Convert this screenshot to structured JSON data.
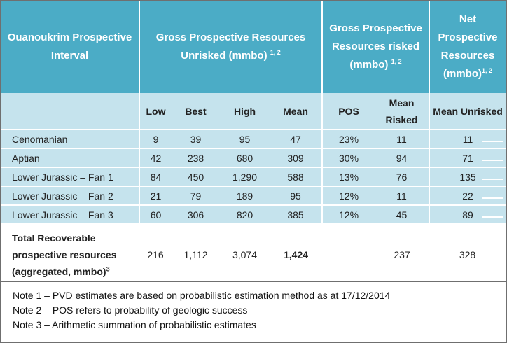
{
  "header": {
    "col1": "Ouanoukrim Prospective Interval",
    "col2": "Gross Prospective Resources Unrisked (mmbo)",
    "col2_sup": "1, 2",
    "col3": "Gross Prospective Resources risked (mmbo)",
    "col3_sup": "1, 2",
    "col4": "Net Prospective Resources (mmbo)",
    "col4_sup": "1, 2"
  },
  "subheader": [
    "Low",
    "Best",
    "High",
    "Mean",
    "POS",
    "Mean Risked",
    "Mean Unrisked"
  ],
  "rows": [
    {
      "name": "Cenomanian",
      "low": "9",
      "best": "39",
      "high": "95",
      "mean": "47",
      "pos": "23%",
      "risked": "11",
      "net": "11"
    },
    {
      "name": "Aptian",
      "low": "42",
      "best": "238",
      "high": "680",
      "mean": "309",
      "pos": "30%",
      "risked": "94",
      "net": "71"
    },
    {
      "name": "Lower Jurassic – Fan 1",
      "low": "84",
      "best": "450",
      "high": "1,290",
      "mean": "588",
      "pos": "13%",
      "risked": "76",
      "net": "135"
    },
    {
      "name": "Lower Jurassic – Fan 2",
      "low": "21",
      "best": "79",
      "high": "189",
      "mean": "95",
      "pos": "12%",
      "risked": "11",
      "net": "22"
    },
    {
      "name": "Lower Jurassic – Fan 3",
      "low": "60",
      "best": "306",
      "high": "820",
      "mean": "385",
      "pos": "12%",
      "risked": "45",
      "net": "89"
    }
  ],
  "total": {
    "label_line1": "Total Recoverable",
    "label_line2": "prospective resources",
    "label_line3": "(aggregated, mmbo)",
    "label_sup": "3",
    "low": "216",
    "best": "1,112",
    "high": "3,074",
    "mean": "1,424",
    "pos": "",
    "risked": "237",
    "net": "328"
  },
  "notes": [
    "Note 1 – PVD estimates are based on probabilistic estimation method as at 17/12/2014",
    "Note 2 – POS refers to probability of geologic success",
    "Note 3 – Arithmetic summation of probabilistic estimates"
  ]
}
